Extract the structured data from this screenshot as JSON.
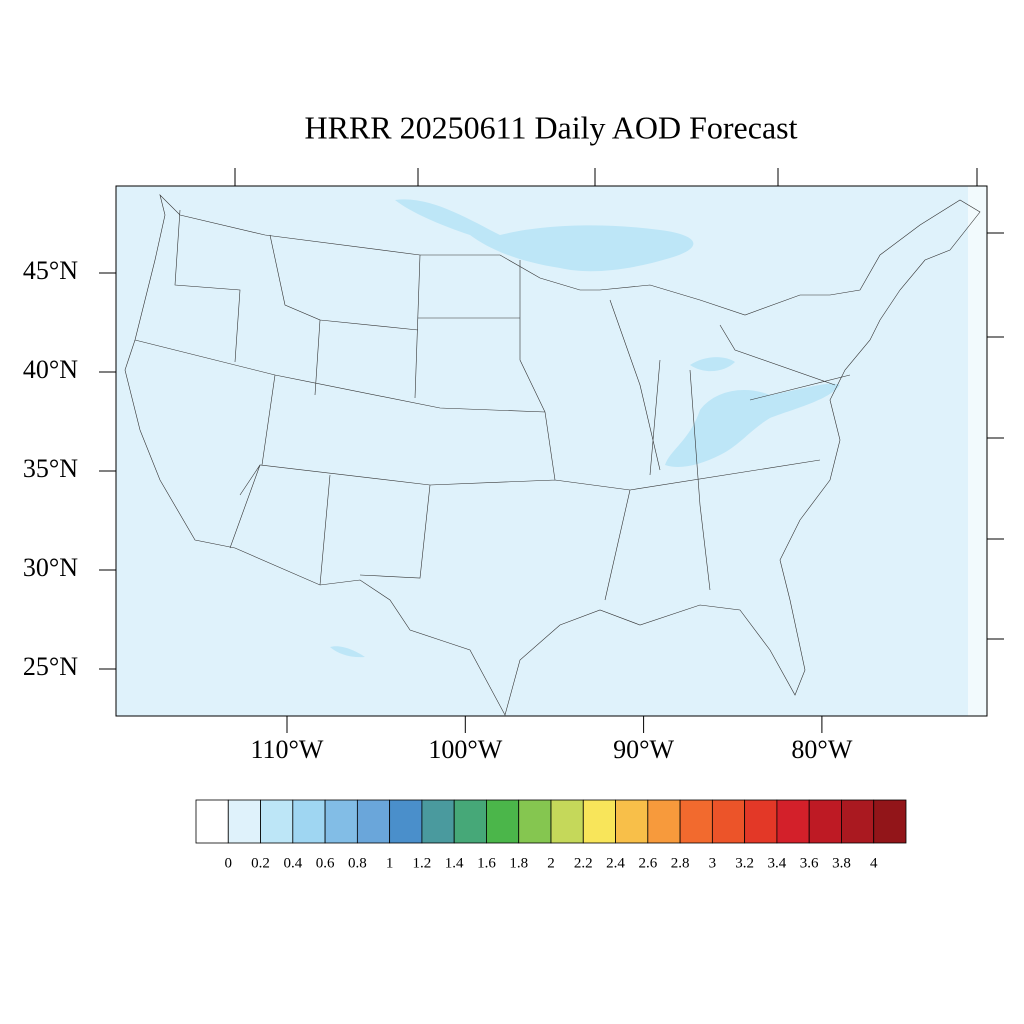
{
  "title": "HRRR 20250611 Daily AOD Forecast",
  "map": {
    "lat_ticks": [
      {
        "value": 45,
        "label": "45°N"
      },
      {
        "value": 40,
        "label": "40°N"
      },
      {
        "value": 35,
        "label": "35°N"
      },
      {
        "value": 30,
        "label": "30°N"
      },
      {
        "value": 25,
        "label": "25°N"
      }
    ],
    "lon_ticks": [
      {
        "value": -110,
        "label": "110°W"
      },
      {
        "value": -100,
        "label": "100°W"
      },
      {
        "value": -90,
        "label": "90°W"
      },
      {
        "value": -80,
        "label": "80°W"
      }
    ],
    "background_color": "#dff2fb",
    "haze_color": "#bde6f7"
  },
  "colorbar": {
    "levels": [
      0,
      0.2,
      0.4,
      0.6,
      0.8,
      1,
      1.2,
      1.4,
      1.6,
      1.8,
      2,
      2.2,
      2.4,
      2.6,
      2.8,
      3,
      3.2,
      3.4,
      3.6,
      3.8,
      4
    ],
    "colors": [
      "#ffffff",
      "#dff2fb",
      "#bde6f7",
      "#9fd6f2",
      "#82bde6",
      "#6aa6da",
      "#4a8fcb",
      "#4a9a9e",
      "#46a878",
      "#4bb64a",
      "#85c650",
      "#c5d85a",
      "#f8e55a",
      "#f8bf49",
      "#f79a3c",
      "#f26a2e",
      "#ec5429",
      "#e33827",
      "#d3202a",
      "#be1a24",
      "#aa1920",
      "#921519"
    ]
  }
}
